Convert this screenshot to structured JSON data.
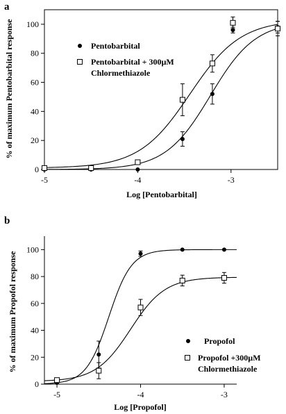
{
  "chart_data": [
    {
      "panel_label": "a",
      "type": "scatter",
      "xlabel": "Log [Pentobarbital]",
      "ylabel": "% of maximum Pentobarbital response",
      "xlim": [
        -5,
        -2.5
      ],
      "ylim": [
        0,
        110
      ],
      "xticks": [
        -5,
        -4,
        -3
      ],
      "yticks": [
        0,
        20,
        40,
        60,
        80,
        100
      ],
      "legend_position": "upper-left",
      "series": [
        {
          "name": "Pentobarbital",
          "marker": "filled-circle",
          "points": [
            {
              "x": -5.0,
              "y": 0,
              "err": 0
            },
            {
              "x": -4.5,
              "y": 0,
              "err": 0
            },
            {
              "x": -4.0,
              "y": 0,
              "err": 0
            },
            {
              "x": -3.52,
              "y": 21,
              "err": 5
            },
            {
              "x": -3.2,
              "y": 52,
              "err": 7
            },
            {
              "x": -2.98,
              "y": 96,
              "err": 2
            },
            {
              "x": -2.5,
              "y": 98,
              "err": 4
            }
          ],
          "fit": {
            "bottom": 0,
            "top": 102,
            "logec50": -3.22,
            "hill": 1.8
          }
        },
        {
          "name": "Pentobarbital + 300µM Chlormethiazole",
          "name_lines": [
            "Pentobarbital + 300µM",
            "Chlormethiazole"
          ],
          "marker": "open-square",
          "points": [
            {
              "x": -5.0,
              "y": 1,
              "err": 0
            },
            {
              "x": -4.5,
              "y": 1,
              "err": 0
            },
            {
              "x": -4.0,
              "y": 5,
              "err": 1
            },
            {
              "x": -3.52,
              "y": 48,
              "err": 11
            },
            {
              "x": -3.2,
              "y": 73,
              "err": 6
            },
            {
              "x": -2.98,
              "y": 101,
              "err": 4
            },
            {
              "x": -2.5,
              "y": 97,
              "err": 5
            }
          ],
          "fit": {
            "bottom": 1,
            "top": 103,
            "logec50": -3.44,
            "hill": 1.6
          }
        }
      ]
    },
    {
      "panel_label": "b",
      "type": "scatter",
      "xlabel": "Log [Propofol]",
      "ylabel": "% of maximum Propofol response",
      "xlim": [
        -5.15,
        -2.85
      ],
      "ylim": [
        0,
        110
      ],
      "xticks": [
        -5,
        -4,
        -3
      ],
      "yticks": [
        0,
        20,
        40,
        60,
        80,
        100
      ],
      "legend_position": "lower-right",
      "series": [
        {
          "name": "Propofol",
          "marker": "filled-circle",
          "points": [
            {
              "x": -5.0,
              "y": 1,
              "err": 0
            },
            {
              "x": -4.5,
              "y": 22,
              "err": 10
            },
            {
              "x": -4.0,
              "y": 97,
              "err": 2
            },
            {
              "x": -3.5,
              "y": 100,
              "err": 0
            },
            {
              "x": -3.0,
              "y": 100,
              "err": 0
            }
          ],
          "fit": {
            "bottom": 0,
            "top": 100,
            "logec50": -4.38,
            "hill": 3.2
          }
        },
        {
          "name": "Propofol +300µM Chlormethiazole",
          "name_lines": [
            "Propofol +300µM",
            "Chlormethiazole"
          ],
          "marker": "open-square",
          "points": [
            {
              "x": -5.0,
              "y": 3,
              "err": 0
            },
            {
              "x": -4.5,
              "y": 10,
              "err": 6
            },
            {
              "x": -4.0,
              "y": 57,
              "err": 6
            },
            {
              "x": -3.5,
              "y": 77,
              "err": 4
            },
            {
              "x": -3.0,
              "y": 79,
              "err": 4
            }
          ],
          "fit": {
            "bottom": 2,
            "top": 79.5,
            "logec50": -4.12,
            "hill": 2.1
          }
        }
      ]
    }
  ]
}
